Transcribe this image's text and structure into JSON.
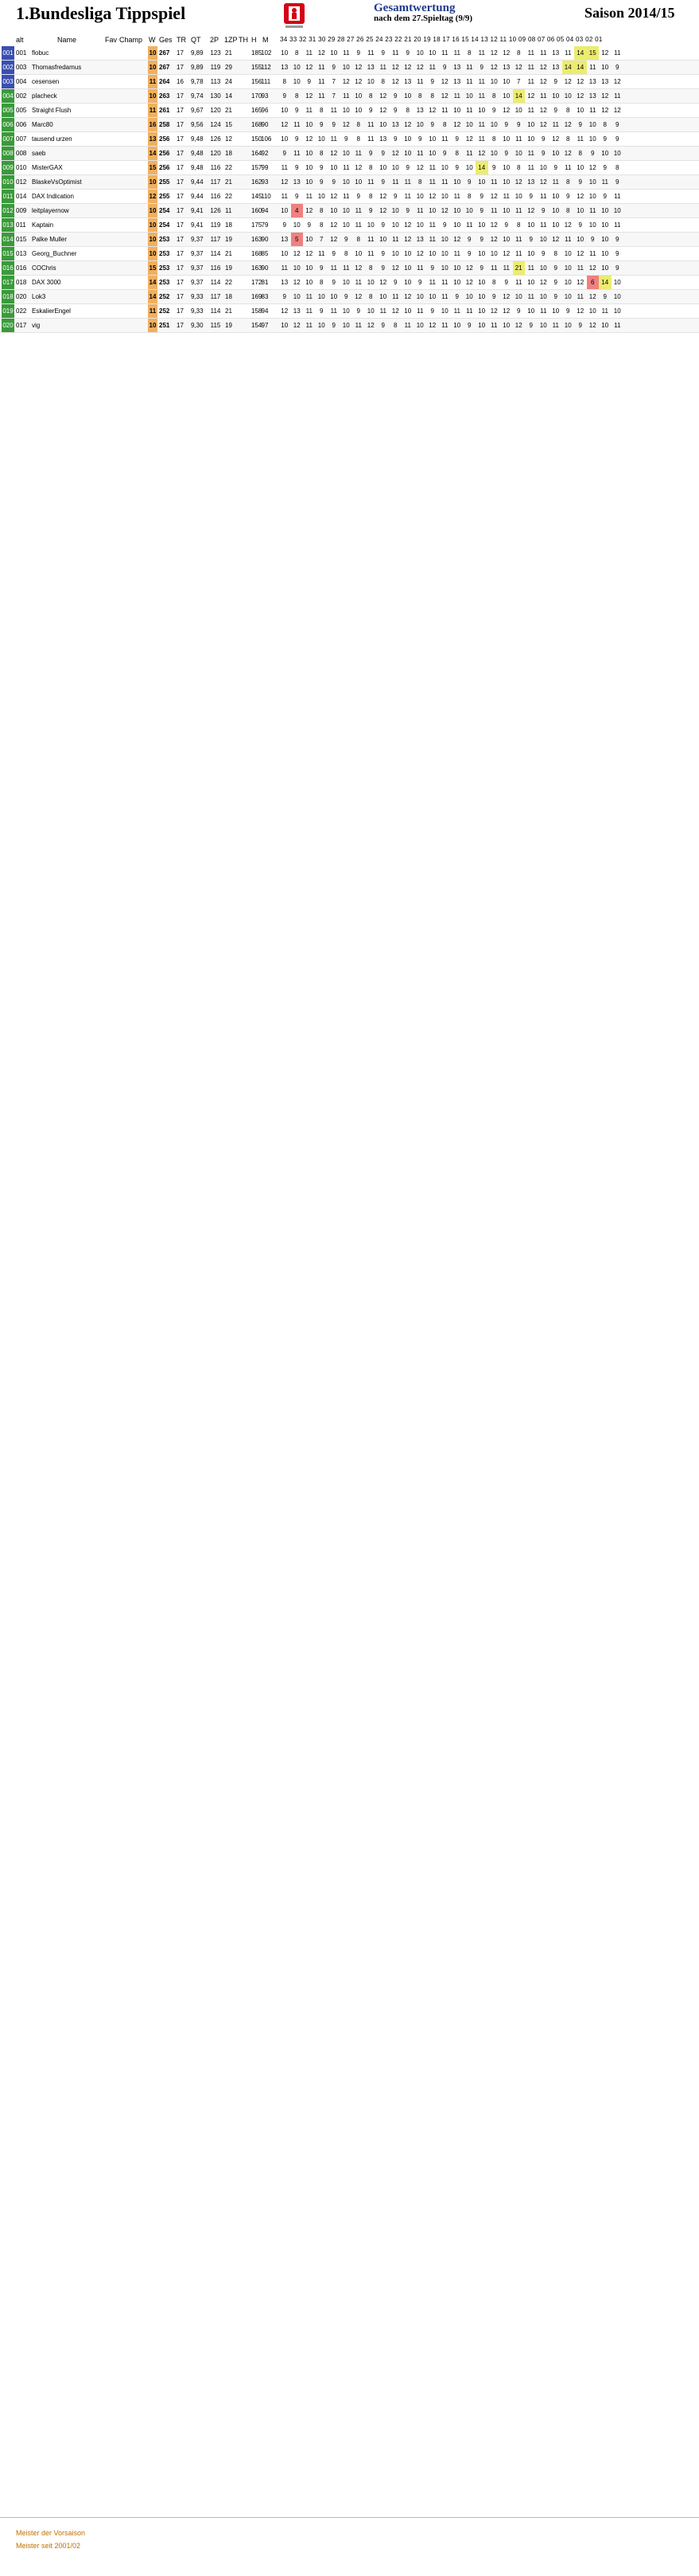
{
  "header": {
    "title": "1.Bundesliga Tippspiel",
    "gesamt_title": "Gesamtwertung",
    "gesamt_sub": "nach dem 27.Spieltag (9/9)",
    "saison": "Saison 2014/15"
  },
  "columns": {
    "alt": "alt",
    "name": "Name",
    "fav": "Fav",
    "champ": "Champ",
    "w": "W",
    "ges": "Ges",
    "tr": "TR",
    "qt": "QT",
    "2p": "2P",
    "1zp": "1ZP",
    "th": "TH",
    "h": "H",
    "m": "M",
    "spieltage": "34 33 32 31 30 29 28 27 26 25 24 23 22 21 20 19 18 17 16 15 14 13 12 11 10 09 08 07 06 05 04 03 02 01"
  },
  "rows": [
    {
      "rank": "001",
      "alt": "001",
      "name": "flobuc",
      "w": "10",
      "ges": "267",
      "tr": "17",
      "qt": "9,89",
      "p2": "123",
      "zp": "21",
      "th": "",
      "h": "185",
      "m": "102",
      "scores": "10 8 11 12 10 11 9 11 9 11 9 10 10 11 11 8 11 12 12 8 11 11 13 11 14 15 12 11"
    },
    {
      "rank": "002",
      "alt": "003",
      "name": "Thomasfredamus",
      "w": "10",
      "ges": "267",
      "tr": "17",
      "qt": "9,89",
      "p2": "119",
      "zp": "29",
      "th": "",
      "h": "155",
      "m": "112",
      "scores": "13 10 12 11 9 10 12 13 11 12 12 12 11 9 13 11 9 12 13 12 11 12 13 14 14 11 10 9"
    },
    {
      "rank": "003",
      "alt": "004",
      "name": "cesensen",
      "w": "11",
      "ges": "264",
      "tr": "16",
      "qt": "9,78",
      "p2": "113",
      "zp": "24",
      "th": "",
      "h": "156",
      "m": "111",
      "scores": "8 10 9 11 7 12 12 10 8 12 13 11 9 12 13 11 11 10 10 7 11 12 9 12 12 13 13 12"
    },
    {
      "rank": "004",
      "alt": "002",
      "name": "placheck",
      "w": "10",
      "ges": "263",
      "tr": "17",
      "qt": "9,74",
      "p2": "130",
      "zp": "14",
      "th": "",
      "h": "170",
      "m": "93",
      "scores": "9 8 12 11 7 11 10 8 12 9 10 8 8 12 11 10 11 8 10 14 12 11 10 10 12 13 12 11"
    },
    {
      "rank": "005",
      "alt": "005",
      "name": "Straight Flush",
      "w": "11",
      "ges": "261",
      "tr": "17",
      "qt": "9,67",
      "p2": "120",
      "zp": "21",
      "th": "",
      "h": "165",
      "m": "96",
      "scores": "10 9 11 8 11 10 10 9 12 9 8 13 12 11 10 11 10 9 12 10 11 12 9 8 10 11 12 12"
    },
    {
      "rank": "006",
      "alt": "006",
      "name": "Marc80",
      "w": "16",
      "ges": "258",
      "tr": "17",
      "qt": "9,56",
      "p2": "124",
      "zp": "15",
      "th": "",
      "h": "168",
      "m": "90",
      "scores": "12 11 10 9 9 12 8 11 10 13 12 10 9 8 12 10 11 10 9 9 10 12 11 12 9 10 8 9"
    },
    {
      "rank": "007",
      "alt": "007",
      "name": "tausend urzen",
      "w": "13",
      "ges": "256",
      "tr": "17",
      "qt": "9,48",
      "p2": "126",
      "zp": "12",
      "th": "",
      "h": "150",
      "m": "106",
      "scores": "10 9 12 10 11 9 8 11 13 9 10 9 10 11 9 12 11 8 10 11 10 9 12 8 11 10 9 9"
    },
    {
      "rank": "008",
      "alt": "008",
      "name": "saeb",
      "w": "14",
      "ges": "256",
      "tr": "17",
      "qt": "9,48",
      "p2": "120",
      "zp": "18",
      "th": "",
      "h": "164",
      "m": "92",
      "scores": "9 11 10 8 12 10 11 9 9 12 10 11 10 9 8 11 12 10 9 10 11 9 10 12 8 9 10 10"
    },
    {
      "rank": "009",
      "alt": "010",
      "name": "MisterGAX",
      "w": "15",
      "ges": "256",
      "tr": "17",
      "qt": "9,48",
      "p2": "116",
      "zp": "22",
      "th": "",
      "h": "157",
      "m": "99",
      "scores": "11 9 10 9 10 11 12 8 10 10 9 12 11 10 9 10 14 9 10 8 11 10 9 11 10 12 9 8"
    },
    {
      "rank": "010",
      "alt": "012",
      "name": "BlaskeVsOptimist",
      "w": "10",
      "ges": "255",
      "tr": "17",
      "qt": "9,44",
      "p2": "117",
      "zp": "21",
      "th": "",
      "h": "162",
      "m": "93",
      "scores": "12 13 10 9 9 10 10 11 9 11 11 8 11 11 10 9 10 11 10 12 13 12 11 8 9 10 11 9"
    },
    {
      "rank": "011",
      "alt": "014",
      "name": "DAX Indication",
      "w": "12",
      "ges": "255",
      "tr": "17",
      "qt": "9,44",
      "p2": "116",
      "zp": "22",
      "th": "",
      "h": "145",
      "m": "110",
      "scores": "11 9 11 10 12 11 9 8 12 9 11 10 12 10 11 8 9 12 11 10 9 11 10 9 12 10 9 11"
    },
    {
      "rank": "012",
      "alt": "009",
      "name": "leitplayernow",
      "w": "10",
      "ges": "254",
      "tr": "17",
      "qt": "9,41",
      "p2": "126",
      "zp": "11",
      "th": "",
      "h": "160",
      "m": "94",
      "scores": "10 4 12 8 10 10 11 9 12 10 9 11 10 12 10 10 9 11 10 11 12 9 10 8 10 11 10 10"
    },
    {
      "rank": "013",
      "alt": "011",
      "name": "Kaptain",
      "w": "10",
      "ges": "254",
      "tr": "17",
      "qt": "9,41",
      "p2": "119",
      "zp": "18",
      "th": "",
      "h": "175",
      "m": "79",
      "scores": "9 10 9 8 12 10 11 10 9 10 12 10 11 9 10 11 10 12 9 8 10 11 10 12 9 10 10 11"
    },
    {
      "rank": "014",
      "alt": "015",
      "name": "Palke Muller",
      "w": "10",
      "ges": "253",
      "tr": "17",
      "qt": "9,37",
      "p2": "117",
      "zp": "19",
      "th": "",
      "h": "163",
      "m": "90",
      "scores": "13 5 10 7 12 9 8 11 10 11 12 13 11 10 12 9 9 12 10 11 9 10 12 11 10 9 10 9"
    },
    {
      "rank": "015",
      "alt": "013",
      "name": "Georg_Buchner",
      "w": "10",
      "ges": "253",
      "tr": "17",
      "qt": "9,37",
      "p2": "114",
      "zp": "21",
      "th": "",
      "h": "168",
      "m": "85",
      "scores": "10 12 12 11 9 8 10 11 9 10 10 12 10 10 11 9 10 10 12 11 10 9 8 10 12 11 10 9"
    },
    {
      "rank": "016",
      "alt": "016",
      "name": "COChris",
      "w": "15",
      "ges": "253",
      "tr": "17",
      "qt": "9,37",
      "p2": "116",
      "zp": "19",
      "th": "",
      "h": "163",
      "m": "90",
      "scores": "11 10 10 9 11 11 12 8 9 12 10 11 9 10 10 12 9 11 11 21 11 10 9 10 11 12 10 9"
    },
    {
      "rank": "017",
      "alt": "018",
      "name": "DAX 3000",
      "w": "14",
      "ges": "253",
      "tr": "17",
      "qt": "9,37",
      "p2": "114",
      "zp": "22",
      "th": "",
      "h": "172",
      "m": "81",
      "scores": "13 12 10 8 9 10 11 10 12 9 10 9 11 11 10 12 10 8 9 11 10 12 9 10 12 6 14 10"
    },
    {
      "rank": "018",
      "alt": "020",
      "name": "Lok3",
      "w": "14",
      "ges": "252",
      "tr": "17",
      "qt": "9,33",
      "p2": "117",
      "zp": "18",
      "th": "",
      "h": "169",
      "m": "83",
      "scores": "9 10 11 10 10 9 12 8 10 11 12 10 10 11 9 10 10 9 12 10 11 10 9 10 11 12 9 10"
    },
    {
      "rank": "019",
      "alt": "022",
      "name": "EskalierEngel",
      "w": "11",
      "ges": "252",
      "tr": "17",
      "qt": "9,33",
      "p2": "114",
      "zp": "21",
      "th": "",
      "h": "158",
      "m": "94",
      "scores": "12 13 11 9 11 10 9 10 11 12 10 11 9 10 11 11 10 12 12 9 10 11 10 9 12 10 11 10"
    },
    {
      "rank": "020",
      "alt": "017",
      "name": "vig",
      "w": "10",
      "ges": "251",
      "tr": "17",
      "qt": "9,30",
      "p2": "115",
      "zp": "19",
      "th": "",
      "h": "154",
      "m": "97",
      "scores": "10 12 11 10 9 10 11 12 9 8 11 10 12 11 10 9 10 11 10 12 9 10 11 10 9 12 10 11"
    }
  ],
  "legend": {
    "meister": "Meister der Vorsaison",
    "meister2": "Meister seit 2001/02"
  },
  "colors": {
    "rank_green": "#3a9a3a",
    "rank_red": "#c82020",
    "rank_blue": "#3a4fb0",
    "w_orange": "#f0b060",
    "yellow_hl": "#ecec70",
    "red_hl": "#f08080",
    "header_blue": "#1f3b8a"
  }
}
